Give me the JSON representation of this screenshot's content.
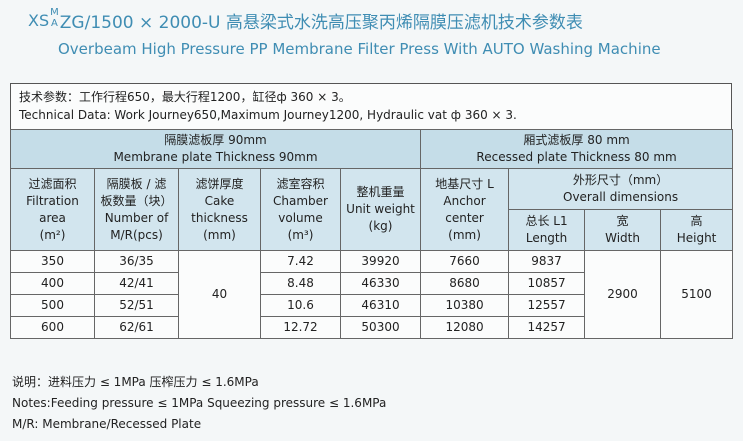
{
  "title": {
    "prefix": "XS",
    "super": "M",
    "sub": "A",
    "cn_rest": "ZG/1500 × 2000-U 高悬梁式水洗高压聚丙烯隔膜压滤机技术参数表",
    "en": "Overbeam  High Pressure PP Membrane Filter Press With AUTO Washing Machine"
  },
  "spec": {
    "cn": "技术参数：工作行程650，最大行程1200，缸径ф 360 × 3。",
    "en": "Technical Data: Work Journey650,Maximum Journey1200, Hydraulic vat ф 360 × 3."
  },
  "table": {
    "membrane_cn": "隔膜滤板厚 90mm",
    "membrane_en": "Membrane plate Thickness 90mm",
    "recessed_cn": "厢式滤板厚 80 mm",
    "recessed_en": "Recessed plate Thickness 80 mm",
    "h_area": [
      "过滤面积",
      "Filtration area",
      "(m²)"
    ],
    "h_plates": [
      "隔膜板 / 滤",
      "板数量（块）",
      "Number of",
      "M/R(pcs)"
    ],
    "h_cake": [
      "滤饼厚度",
      "Cake",
      "thickness",
      "(mm)"
    ],
    "h_chamber": [
      "滤室容积",
      "Chamber",
      "volume",
      "(m³)"
    ],
    "h_weight": [
      "整机重量",
      "Unit weight",
      "(kg)"
    ],
    "h_anchor": [
      "地基尺寸 L",
      "Anchor",
      "center",
      "(mm)"
    ],
    "h_overall": [
      "外形尺寸（mm）",
      "Overall dimensions"
    ],
    "h_length": [
      "总长 L1",
      "Length"
    ],
    "h_width": [
      "宽",
      "Width"
    ],
    "h_height": [
      "高",
      "Height"
    ],
    "cake_value": "40",
    "width_value": "2900",
    "height_value": "5100",
    "rows": [
      {
        "area": "350",
        "plates": "36/35",
        "chamber": "7.42",
        "weight": "39920",
        "anchor": "7660",
        "length": "9837"
      },
      {
        "area": "400",
        "plates": "42/41",
        "chamber": "8.48",
        "weight": "46330",
        "anchor": "8680",
        "length": "10857"
      },
      {
        "area": "500",
        "plates": "52/51",
        "chamber": "10.6",
        "weight": "46310",
        "anchor": "10380",
        "length": "12557"
      },
      {
        "area": "600",
        "plates": "62/61",
        "chamber": "12.72",
        "weight": "50300",
        "anchor": "12080",
        "length": "14257"
      }
    ]
  },
  "notes": [
    "说明：进料压力 ≤ 1MPa   压榨压力 ≤ 1.6MPa",
    "Notes:Feeding pressure ≤ 1MPa   Squeezing pressure ≤ 1.6MPa",
    "M/R: Membrane/Recessed Plate"
  ]
}
